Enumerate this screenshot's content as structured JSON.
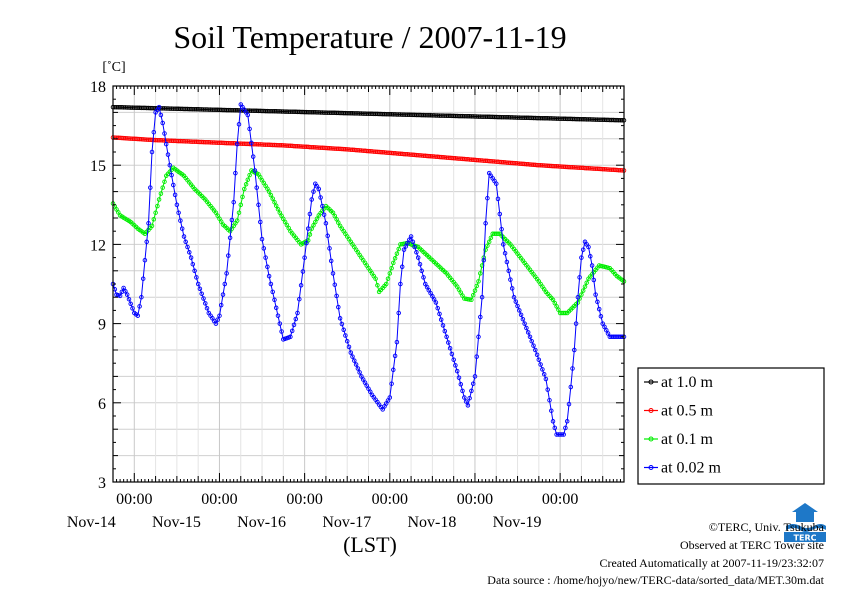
{
  "chart_data": {
    "type": "line",
    "title": "Soil Temperature / 2007-11-19",
    "ylabel": "[˚C]",
    "xlabel": "(LST)",
    "ylim": [
      3,
      18
    ],
    "yticks": [
      3,
      6,
      9,
      12,
      15,
      18
    ],
    "x_unit": "hours since 2007-11-13 00:00 LST",
    "xlim": [
      18,
      162
    ],
    "xticks": [
      {
        "x": 24,
        "time": "00:00",
        "date": "Nov-14"
      },
      {
        "x": 48,
        "time": "00:00",
        "date": "Nov-15"
      },
      {
        "x": 72,
        "time": "00:00",
        "date": "Nov-16"
      },
      {
        "x": 96,
        "time": "00:00",
        "date": "Nov-17"
      },
      {
        "x": 120,
        "time": "00:00",
        "date": "Nov-18"
      },
      {
        "x": 144,
        "time": "00:00",
        "date": "Nov-19"
      }
    ],
    "grid": true,
    "legend_position": "right",
    "series": [
      {
        "name": "at 1.0 m",
        "color": "#000000",
        "x": [
          18,
          162
        ],
        "y": [
          17.2,
          16.7
        ]
      },
      {
        "name": "at 0.5 m",
        "color": "#ff0000",
        "x": [
          18,
          30,
          48,
          66,
          84,
          102,
          120,
          138,
          162
        ],
        "y": [
          16.05,
          15.95,
          15.85,
          15.75,
          15.6,
          15.4,
          15.2,
          15.0,
          14.8
        ]
      },
      {
        "name": "at 0.1 m",
        "color": "#00ee00",
        "x": [
          18,
          20,
          23,
          25,
          27,
          29,
          31,
          33,
          35,
          38,
          41,
          44,
          47,
          49,
          51,
          53,
          55,
          57,
          59,
          62,
          65,
          68,
          71,
          73,
          74,
          76,
          78,
          80,
          82,
          86,
          89,
          92,
          93,
          95,
          97,
          99,
          101,
          104,
          108,
          112,
          115,
          117,
          119,
          121,
          123,
          125,
          127,
          130,
          134,
          138,
          140,
          142,
          144,
          146,
          149,
          152,
          155,
          158,
          160,
          162
        ],
        "y": [
          13.55,
          13.1,
          12.85,
          12.6,
          12.4,
          12.7,
          13.7,
          14.6,
          14.9,
          14.6,
          14.1,
          13.7,
          13.2,
          12.75,
          12.5,
          12.9,
          14.1,
          14.8,
          14.65,
          14.0,
          13.2,
          12.5,
          12.0,
          12.15,
          12.6,
          13.1,
          13.45,
          13.2,
          12.7,
          11.9,
          11.3,
          10.7,
          10.2,
          10.5,
          11.3,
          12.0,
          12.05,
          11.9,
          11.4,
          10.9,
          10.4,
          9.95,
          9.9,
          10.6,
          11.8,
          12.4,
          12.4,
          12.0,
          11.3,
          10.6,
          10.2,
          9.9,
          9.4,
          9.4,
          9.8,
          10.7,
          11.2,
          11.1,
          10.8,
          10.6
        ]
      },
      {
        "name": "at 0.02 m",
        "color": "#0000ff",
        "x": [
          18,
          19,
          20,
          21,
          22,
          24,
          25,
          26,
          28,
          29,
          30,
          31,
          32,
          34,
          36,
          38,
          40,
          42,
          45,
          47,
          48,
          50,
          52,
          53,
          54,
          56,
          58,
          60,
          62,
          64,
          66,
          68,
          70,
          72,
          74,
          75,
          76,
          78,
          80,
          82,
          85,
          88,
          91,
          94,
          96,
          98,
          99,
          100,
          102,
          104,
          106,
          109,
          112,
          115,
          117,
          118,
          120,
          122,
          123,
          124,
          126,
          128,
          131,
          134,
          137,
          140,
          141,
          142,
          143,
          145,
          146,
          147,
          148,
          149,
          150,
          151,
          152,
          153,
          154,
          156,
          158,
          160,
          162
        ],
        "y": [
          10.5,
          10.1,
          10.05,
          10.35,
          10.1,
          9.4,
          9.3,
          10.0,
          12.8,
          15.5,
          17.0,
          17.2,
          16.6,
          15.0,
          13.5,
          12.3,
          11.5,
          10.5,
          9.4,
          9.0,
          9.3,
          10.9,
          13.6,
          15.8,
          17.3,
          16.9,
          14.8,
          12.2,
          10.8,
          9.6,
          8.4,
          8.5,
          9.4,
          11.5,
          13.7,
          14.3,
          14.1,
          12.8,
          10.9,
          9.2,
          7.9,
          7.0,
          6.3,
          5.75,
          6.2,
          8.3,
          10.5,
          11.8,
          12.3,
          11.5,
          10.5,
          9.8,
          8.5,
          7.2,
          6.2,
          5.9,
          7.0,
          10.0,
          12.8,
          14.7,
          14.3,
          12.0,
          10.0,
          9.0,
          8.0,
          6.9,
          6.1,
          5.3,
          4.8,
          4.8,
          5.3,
          6.6,
          8.0,
          10.0,
          11.5,
          12.1,
          11.9,
          11.2,
          10.1,
          9.0,
          8.5,
          8.5,
          8.5
        ]
      }
    ]
  },
  "footer": {
    "copyright": "©TERC, Univ. Tsukuba",
    "observed": "Observed at TERC Tower site",
    "created": "Created Automatically at 2007-11-19/23:32:07",
    "source": "Data source : /home/hojyo/new/TERC-data/sorted_data/MET.30m.dat"
  },
  "logo": {
    "text": "TERC",
    "color": "#1e78c8"
  }
}
